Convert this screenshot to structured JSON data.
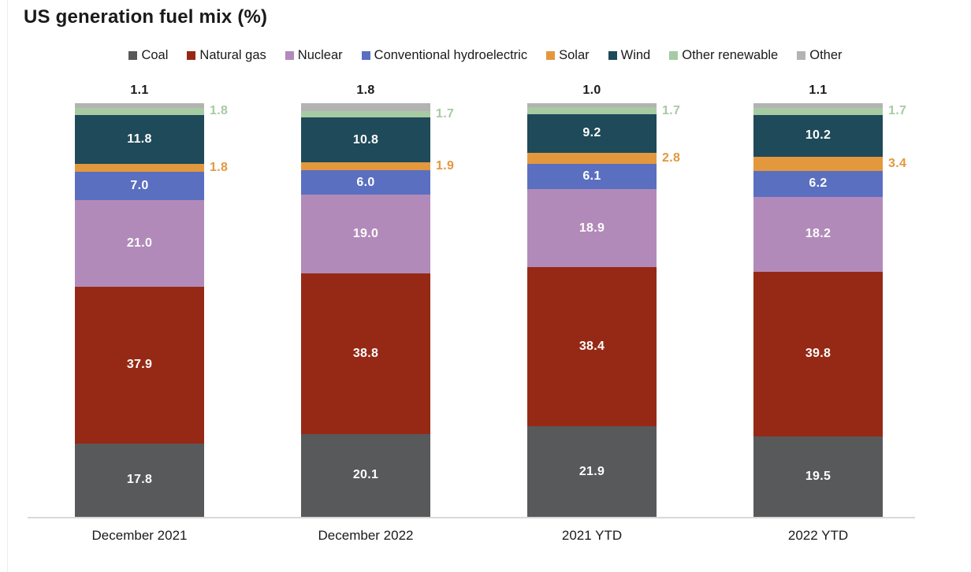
{
  "chart_data": {
    "type": "bar",
    "stacked": true,
    "title": "US generation fuel mix (%)",
    "legend_position": "top",
    "grid": false,
    "ylim": [
      0,
      100
    ],
    "axis_line_color": "#d9d9d9",
    "categories": [
      "December 2021",
      "December 2022",
      "2021 YTD",
      "2022 YTD"
    ],
    "series": [
      {
        "name": "Coal",
        "color": "#58595b",
        "label_style": "inside",
        "values": [
          17.8,
          20.1,
          21.9,
          19.5
        ]
      },
      {
        "name": "Natural gas",
        "color": "#962915",
        "label_style": "inside",
        "values": [
          37.9,
          38.8,
          38.4,
          39.8
        ]
      },
      {
        "name": "Nuclear",
        "color": "#b28ab9",
        "label_style": "inside",
        "values": [
          21.0,
          19.0,
          18.9,
          18.2
        ]
      },
      {
        "name": "Conventional hydroelectric",
        "color": "#5b6fc0",
        "label_style": "inside",
        "values": [
          7.0,
          6.0,
          6.1,
          6.2
        ]
      },
      {
        "name": "Solar",
        "color": "#e3983e",
        "label_style": "side",
        "values": [
          1.8,
          1.9,
          2.8,
          3.4
        ]
      },
      {
        "name": "Wind",
        "color": "#1f4a59",
        "label_style": "inside",
        "values": [
          11.8,
          10.8,
          9.2,
          10.2
        ]
      },
      {
        "name": "Other renewable",
        "color": "#a6cba3",
        "label_style": "side",
        "values": [
          1.8,
          1.7,
          1.7,
          1.7
        ]
      },
      {
        "name": "Other",
        "color": "#b3b3b3",
        "label_style": "above",
        "values": [
          1.1,
          1.8,
          1.0,
          1.1
        ]
      }
    ]
  }
}
